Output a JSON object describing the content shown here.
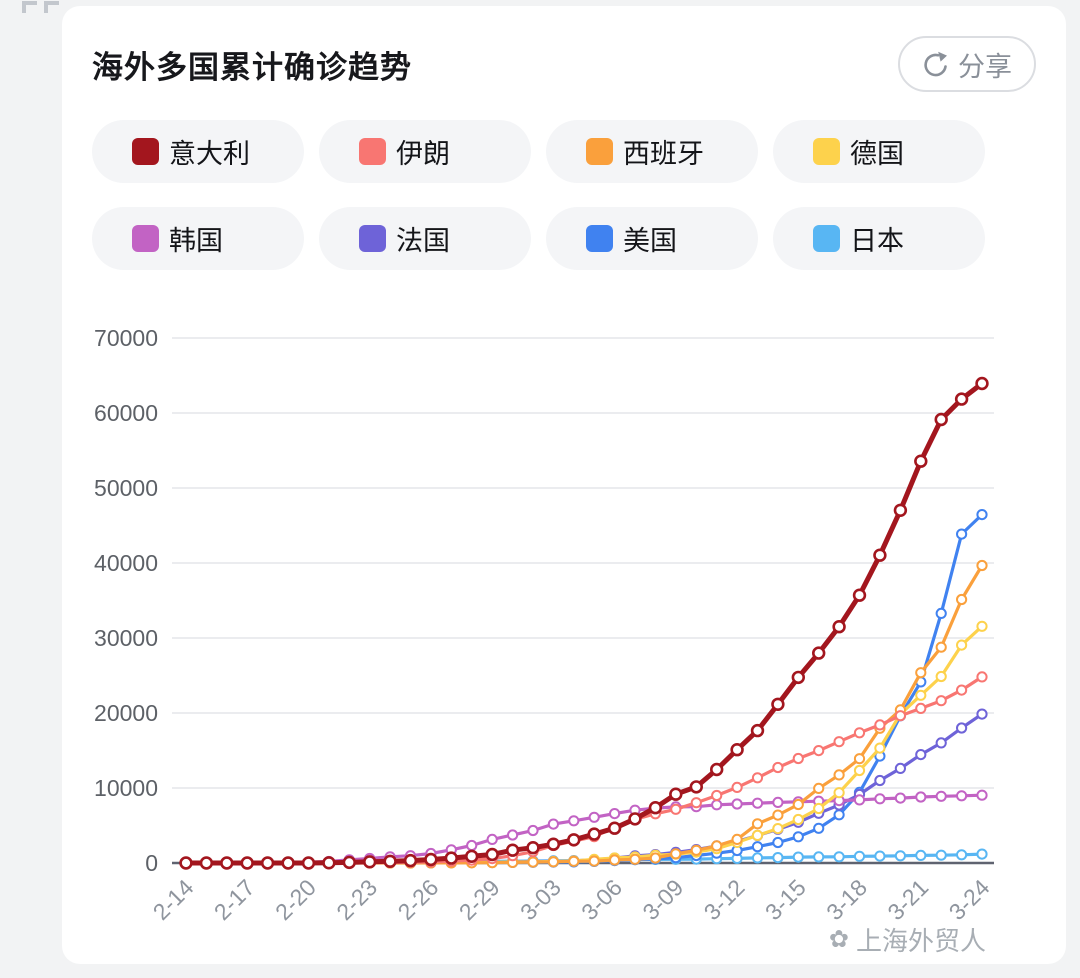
{
  "header": {
    "title": "海外多国累计确诊趋势",
    "share_button": {
      "label": "分享",
      "icon": "share-refresh-arrow-icon"
    }
  },
  "watermark": {
    "icon": "flower-icon",
    "text": "上海外贸人"
  },
  "colors": {
    "page_background": "#f2f3f4",
    "card_background": "#ffffff",
    "legend_pill_background": "#f4f5f7",
    "grid_line": "#e8eaed",
    "axis_line": "#5f6370",
    "y_label": "#5d6167",
    "x_label": "#8f959e"
  },
  "chart_data": {
    "type": "line",
    "title": "海外多国累计确诊趋势",
    "xlabel": "",
    "ylabel": "",
    "ylim": [
      0,
      70000
    ],
    "y_ticks": [
      0,
      10000,
      20000,
      30000,
      40000,
      50000,
      60000,
      70000
    ],
    "grid": true,
    "legend_position": "top",
    "marker": "circle-white-fill",
    "x_tick_labels": [
      "2-14",
      "2-17",
      "2-20",
      "2-23",
      "2-26",
      "2-29",
      "3-03",
      "3-06",
      "3-09",
      "3-12",
      "3-15",
      "3-18",
      "3-21",
      "3-24"
    ],
    "x_dates": [
      "2-14",
      "2-15",
      "2-16",
      "2-17",
      "2-18",
      "2-19",
      "2-20",
      "2-21",
      "2-22",
      "2-23",
      "2-24",
      "2-25",
      "2-26",
      "2-27",
      "2-28",
      "2-29",
      "3-01",
      "3-02",
      "3-03",
      "3-04",
      "3-05",
      "3-06",
      "3-07",
      "3-08",
      "3-09",
      "3-10",
      "3-11",
      "3-12",
      "3-13",
      "3-14",
      "3-15",
      "3-16",
      "3-17",
      "3-18",
      "3-19",
      "3-20",
      "3-21",
      "3-22",
      "3-23",
      "3-24"
    ],
    "series": [
      {
        "name": "意大利",
        "color": "#a3161e",
        "line_width": 5,
        "values": [
          3,
          3,
          3,
          3,
          3,
          3,
          4,
          21,
          79,
          157,
          229,
          323,
          470,
          655,
          889,
          1128,
          1701,
          2036,
          2502,
          3089,
          3858,
          4636,
          5883,
          7375,
          9172,
          10149,
          12462,
          15113,
          17660,
          21157,
          24747,
          27980,
          31506,
          35713,
          41035,
          47021,
          53578,
          59138,
          61857,
          63927
        ]
      },
      {
        "name": "伊朗",
        "color": "#f87672",
        "line_width": 3.2,
        "values": [
          0,
          0,
          0,
          0,
          0,
          2,
          5,
          18,
          28,
          43,
          61,
          95,
          139,
          245,
          388,
          593,
          978,
          1501,
          2336,
          2922,
          3513,
          4747,
          5823,
          6566,
          7161,
          8042,
          9000,
          10075,
          11364,
          12729,
          13938,
          14991,
          16169,
          17361,
          18407,
          19644,
          20610,
          21638,
          23049,
          24811
        ]
      },
      {
        "name": "西班牙",
        "color": "#faa03c",
        "line_width": 3.2,
        "values": [
          2,
          2,
          2,
          2,
          2,
          2,
          2,
          2,
          2,
          2,
          2,
          6,
          13,
          15,
          32,
          45,
          84,
          120,
          165,
          222,
          259,
          400,
          500,
          673,
          1231,
          1695,
          2277,
          3146,
          5232,
          6391,
          7798,
          9942,
          11748,
          13910,
          17963,
          20410,
          25374,
          28768,
          35136,
          39673
        ]
      },
      {
        "name": "德国",
        "color": "#fdd24c",
        "line_width": 3.2,
        "values": [
          16,
          16,
          16,
          16,
          16,
          16,
          16,
          16,
          16,
          16,
          16,
          17,
          27,
          46,
          48,
          79,
          130,
          159,
          196,
          262,
          482,
          670,
          799,
          1040,
          1176,
          1457,
          1908,
          2745,
          3675,
          4585,
          5795,
          7272,
          9367,
          12327,
          15320,
          19848,
          22364,
          24873,
          29056,
          31554
        ]
      },
      {
        "name": "韩国",
        "color": "#c263c4",
        "line_width": 3.2,
        "values": [
          28,
          28,
          29,
          30,
          31,
          51,
          104,
          204,
          433,
          602,
          833,
          977,
          1261,
          1766,
          2337,
          3150,
          3736,
          4335,
          5186,
          5621,
          6088,
          6593,
          7041,
          7314,
          7478,
          7513,
          7755,
          7869,
          7979,
          8086,
          8162,
          8236,
          8320,
          8413,
          8565,
          8652,
          8799,
          8897,
          8961,
          9037
        ]
      },
      {
        "name": "法国",
        "color": "#6e63d8",
        "line_width": 3.2,
        "values": [
          11,
          11,
          11,
          11,
          11,
          11,
          11,
          11,
          11,
          11,
          11,
          12,
          18,
          38,
          57,
          100,
          130,
          191,
          212,
          285,
          423,
          653,
          949,
          1126,
          1412,
          1784,
          2281,
          2876,
          3661,
          4499,
          5423,
          6633,
          7730,
          9134,
          10995,
          12612,
          14459,
          16018,
          18000,
          19856
        ]
      },
      {
        "name": "美国",
        "color": "#4082f0",
        "line_width": 3.2,
        "values": [
          15,
          15,
          15,
          15,
          15,
          15,
          15,
          15,
          15,
          15,
          15,
          15,
          60,
          60,
          62,
          68,
          75,
          100,
          118,
          149,
          217,
          319,
          435,
          541,
          704,
          994,
          1301,
          1663,
          2179,
          2727,
          3499,
          4632,
          6421,
          9415,
          14250,
          19624,
          24148,
          33276,
          43847,
          46450
        ]
      },
      {
        "name": "日本",
        "color": "#58b6f3",
        "line_width": 3.2,
        "values": [
          33,
          41,
          53,
          59,
          66,
          74,
          84,
          96,
          112,
          132,
          146,
          156,
          164,
          186,
          210,
          230,
          243,
          261,
          284,
          317,
          349,
          420,
          461,
          475,
          488,
          514,
          568,
          620,
          675,
          716,
          780,
          814,
          829,
          889,
          924,
          963,
          1007,
          1046,
          1089,
          1193
        ]
      }
    ]
  }
}
